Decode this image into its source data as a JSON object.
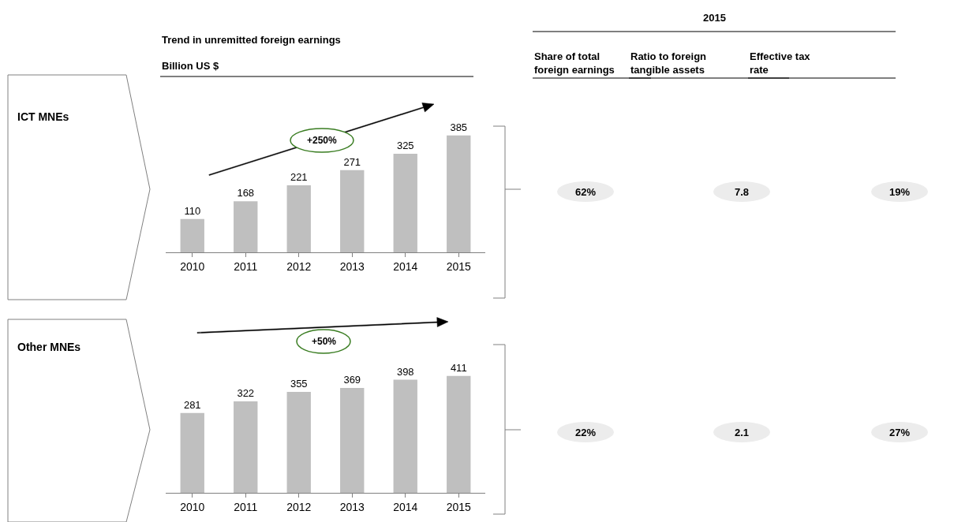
{
  "chart_data": [
    {
      "type": "bar",
      "title": "Trend in unremitted foreign earnings",
      "subtitle": "Billion US $",
      "categories": [
        "2010",
        "2011",
        "2012",
        "2013",
        "2014",
        "2015"
      ],
      "values": [
        110,
        168,
        221,
        271,
        325,
        385
      ],
      "color": "#bfbfbf",
      "data_labels": true,
      "annotations": [
        "ICT MNEs",
        "+250%"
      ]
    },
    {
      "type": "bar",
      "categories": [
        "2010",
        "2011",
        "2012",
        "2013",
        "2014",
        "2015"
      ],
      "values": [
        281,
        322,
        355,
        369,
        398,
        411
      ],
      "color": "#bfbfbf",
      "data_labels": true,
      "annotations": [
        "Other MNEs",
        "+50%"
      ]
    },
    {
      "type": "other",
      "title": "2015",
      "categories": [
        "Share of total foreign earnings",
        "Ratio to foreign tangible assets",
        "Effective tax rate"
      ],
      "annotations": [
        "62%",
        "7.8",
        "19%",
        "22%",
        "2.1",
        "27%"
      ]
    }
  ]
}
